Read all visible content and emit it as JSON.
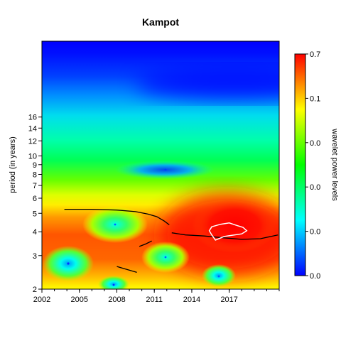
{
  "chart_data": {
    "type": "heatmap",
    "title": "Kampot",
    "xlabel": "",
    "ylabel": "period (in years)",
    "x_ticks": [
      "2002",
      "2005",
      "2008",
      "2011",
      "2014",
      "2017"
    ],
    "x_range": [
      2002,
      2021
    ],
    "y_scale": "log2",
    "y_ticks": [
      "2",
      "3",
      "4",
      "5",
      "6",
      "7",
      "8",
      "9",
      "10",
      "12",
      "14",
      "16"
    ],
    "y_range": [
      2,
      40
    ],
    "colorbar": {
      "label": "wavelet power levels",
      "tick_labels": [
        "0.7",
        "0.1",
        "0.0",
        "0.0",
        "0.0",
        "0.0"
      ],
      "colors": [
        "#ff0000",
        "#ffff00",
        "#00ff00",
        "#00ffff",
        "#0000ff"
      ]
    },
    "ridge_lines": [
      [
        [
          2003.8,
          5.25
        ],
        [
          2006,
          5.25
        ],
        [
          2008,
          5.2
        ],
        [
          2009.5,
          5.1
        ],
        [
          2010.5,
          4.95
        ],
        [
          2011.2,
          4.8
        ],
        [
          2011.8,
          4.55
        ],
        [
          2012.2,
          4.35
        ]
      ],
      [
        [
          2012.4,
          3.95
        ],
        [
          2013.5,
          3.85
        ],
        [
          2015,
          3.8
        ],
        [
          2016.5,
          3.72
        ],
        [
          2018,
          3.65
        ],
        [
          2019.5,
          3.68
        ],
        [
          2020.9,
          3.85
        ]
      ],
      [
        [
          2009.8,
          3.35
        ],
        [
          2010.3,
          3.45
        ],
        [
          2010.8,
          3.58
        ]
      ],
      [
        [
          2008.0,
          2.63
        ],
        [
          2008.7,
          2.55
        ],
        [
          2009.6,
          2.45
        ]
      ]
    ],
    "significance_contour": [
      [
        2015.6,
        4.25
      ],
      [
        2016.3,
        4.38
      ],
      [
        2017.0,
        4.45
      ],
      [
        2017.6,
        4.32
      ],
      [
        2018.1,
        4.22
      ],
      [
        2018.4,
        4.05
      ],
      [
        2018.0,
        3.9
      ],
      [
        2017.4,
        3.85
      ],
      [
        2016.6,
        3.78
      ],
      [
        2015.9,
        3.62
      ],
      [
        2015.6,
        3.85
      ],
      [
        2015.4,
        4.05
      ]
    ]
  }
}
